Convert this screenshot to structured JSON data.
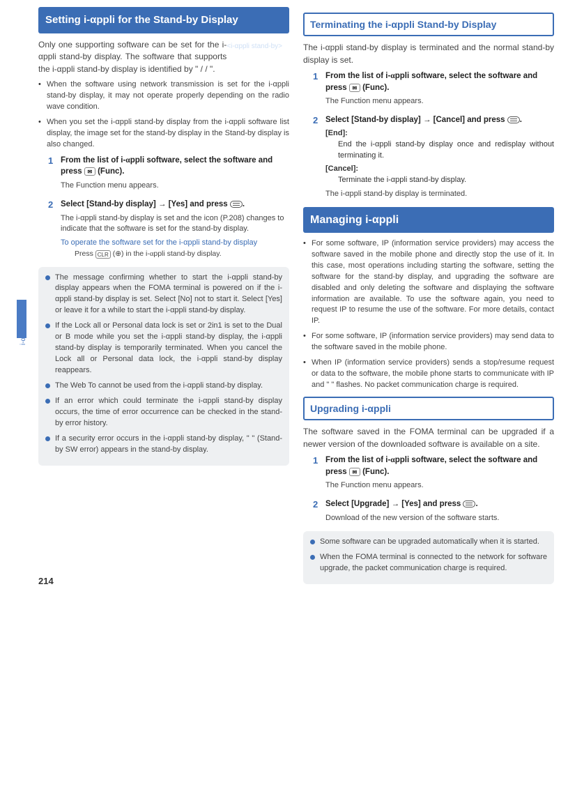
{
  "page_number": "214",
  "side_label": "i-αppli",
  "left": {
    "header_title": "Setting i-αppli for the Stand-by Display",
    "header_sub": "<i-αppli stand-by>",
    "intro": "Only one supporting software can be set for the i-αppli stand-by display. The software that supports the i-αppli stand-by display is identified by \" / / \".",
    "bullets": [
      "When the software using network transmission is set for the i-αppli stand-by display, it may not operate properly depending on the radio wave condition.",
      "When you set the i-αppli stand-by display from the i-αppli software list display, the image set for the stand-by display in the Stand-by display is also changed."
    ],
    "steps": [
      {
        "head": "From the list of i-αppli software, select the software and press ⌨ (Func).",
        "sub": "The Function menu appears."
      },
      {
        "head": "Select [Stand-by display] → [Yes] and press ▭.",
        "sub": "The i-αppli stand-by display is set and the icon (P.208) changes to indicate that the software is set for the stand-by display.",
        "note_title": "To operate the software set for the i-αppli stand-by display",
        "note_sub": "Press CLR (⊕) in the i-αppli stand-by display."
      }
    ],
    "info": [
      "The message confirming whether to start the i-αppli stand-by display appears when the FOMA terminal is powered on if the i-αppli stand-by display is set. Select [No] not to start it. Select [Yes] or leave it for a while to start the i-αppli stand-by display.",
      "If the Lock all or Personal data lock is set or 2in1 is set to the Dual or B mode while you set the i-αppli stand-by display, the i-αppli stand-by display is temporarily terminated. When you cancel the Lock all or Personal data lock, the i-αppli stand-by display reappears.",
      "The Web To cannot be used from the i-αppli stand-by display.",
      "If an error which could terminate the i-αppli stand-by display occurs, the time of error occurrence can be checked in the stand-by error history.",
      "If a security error occurs in the i-αppli stand-by display, \" \" (Stand-by SW error) appears in the stand-by display."
    ]
  },
  "right": {
    "terminate_header": "Terminating the i-αppli Stand-by Display",
    "terminate_intro": "The i-αppli stand-by display is terminated and the normal stand-by display is set.",
    "terminate_steps": [
      {
        "head": "From the list of i-αppli software, select the software and press ⌨ (Func).",
        "sub": "The Function menu appears."
      },
      {
        "head": "Select [Stand-by display] → [Cancel] and press ▭.",
        "dl": [
          {
            "term": "[End]:",
            "def": "End the i-αppli stand-by display once and redisplay without terminating it."
          },
          {
            "term": "[Cancel]:",
            "def": "Terminate the i-αppli stand-by display."
          }
        ],
        "after": "The i-αppli stand-by display is terminated."
      }
    ],
    "managing_header": "Managing i-αppli",
    "managing_bullets": [
      "For some software, IP (information service providers) may access the software saved in the mobile phone and directly stop the use of it. In this case, most operations including starting the software, setting the software for the stand-by display, and upgrading the software are disabled and only deleting the software and displaying the software information are available. To use the software again, you need to request IP to resume the use of the software. For more details, contact IP.",
      "For some software, IP (information service providers) may send data to the software saved in the mobile phone.",
      "When IP (information service providers) sends a stop/resume request or data to the software, the mobile phone starts to communicate with IP and \" \" flashes. No packet communication charge is required."
    ],
    "upgrade_header": "Upgrading i-αppli",
    "upgrade_intro": "The software saved in the FOMA terminal can be upgraded if a newer version of the downloaded software is available on a site.",
    "upgrade_steps": [
      {
        "head": "From the list of i-αppli software, select the software and press ⌨ (Func).",
        "sub": "The Function menu appears."
      },
      {
        "head": "Select [Upgrade] → [Yes] and press ▭.",
        "sub": "Download of the new version of the software starts."
      }
    ],
    "upgrade_info": [
      "Some software can be upgraded automatically when it is started.",
      "When the FOMA terminal is connected to the network for software upgrade, the packet communication charge is required."
    ]
  }
}
